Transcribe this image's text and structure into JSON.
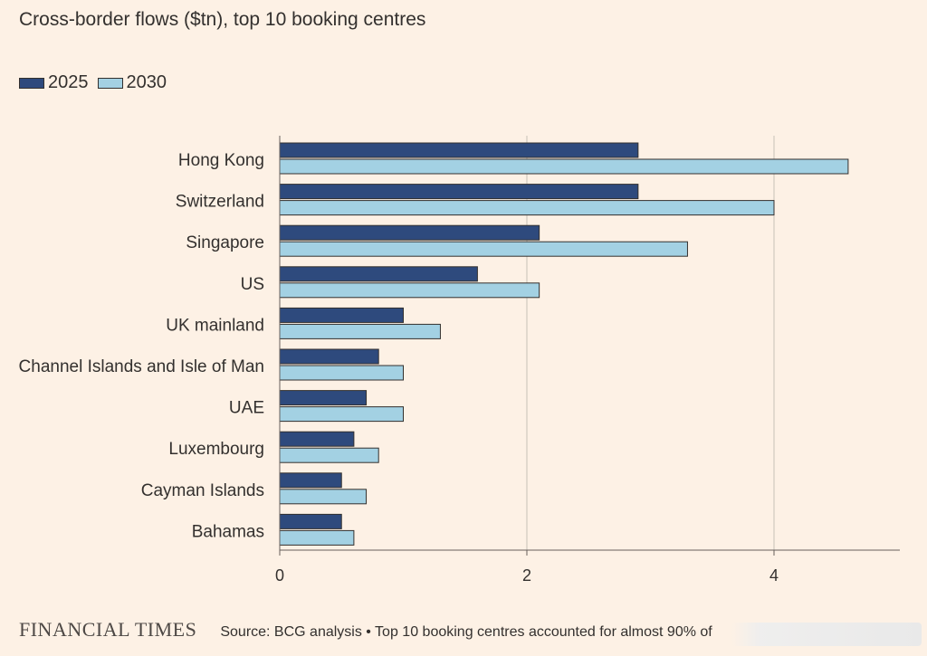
{
  "title": "Cross-border flows ($tn), top 10 booking centres",
  "colors": {
    "background": "#fdf1e5",
    "series_2025": "#2e4a7d",
    "series_2030": "#a3d1e3",
    "bar_outline": "#33302e",
    "grid": "#c8c1b8"
  },
  "legend": [
    {
      "label": "2025",
      "color": "#2e4a7d"
    },
    {
      "label": "2030",
      "color": "#a3d1e3"
    }
  ],
  "chart_data": {
    "type": "bar",
    "orientation": "horizontal",
    "title": "Cross-border flows ($tn), top 10 booking centres",
    "categories": [
      "Hong Kong",
      "Switzerland",
      "Singapore",
      "US",
      "UK mainland",
      "Channel Islands and Isle of Man",
      "UAE",
      "Luxembourg",
      "Cayman Islands",
      "Bahamas"
    ],
    "series": [
      {
        "name": "2025",
        "color": "#2e4a7d",
        "values": [
          2.9,
          2.9,
          2.1,
          1.6,
          1.0,
          0.8,
          0.7,
          0.6,
          0.5,
          0.5
        ]
      },
      {
        "name": "2030",
        "color": "#a3d1e3",
        "values": [
          4.6,
          4.0,
          3.3,
          2.1,
          1.3,
          1.0,
          1.0,
          0.8,
          0.7,
          0.6
        ]
      }
    ],
    "xlim": [
      0,
      5
    ],
    "xticks": [
      0,
      2,
      4
    ],
    "xlabel": "",
    "ylabel": "",
    "grid": "vertical",
    "legend_position": "top-left"
  },
  "footer": {
    "brand": "FINANCIAL TIMES",
    "source": "Source: BCG analysis • Top 10 booking centres accounted for almost 90% of"
  }
}
